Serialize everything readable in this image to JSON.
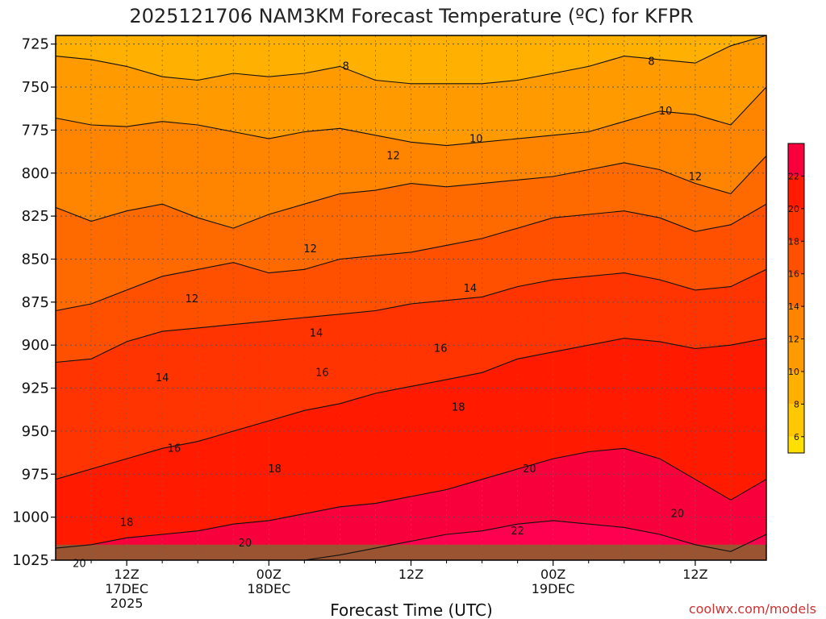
{
  "title": "2025121706 NAM3KM Forecast Temperature (ºC) for KFPR",
  "credit": "coolwx.com/models",
  "colors": {
    "bands": [
      "#FFE000",
      "#FFC800",
      "#FFB000",
      "#FF9A00",
      "#FF8400",
      "#FF6A00",
      "#FF5000",
      "#FF3400",
      "#FF1A00",
      "#F8003C",
      "#FF0050"
    ],
    "ground": "#9B5431",
    "contour": "#111111",
    "grid": "#555555",
    "credit": "#cc3333"
  },
  "chart_data": {
    "type": "heatmap",
    "title": "2025121706 NAM3KM Forecast Temperature (ºC) for KFPR",
    "xlabel": "Forecast Time (UTC)",
    "ylabel": "",
    "xlim": [
      6,
      66
    ],
    "ylim": [
      1025,
      720
    ],
    "y_scale": "pressure (inverted)",
    "grid": true,
    "legend": "colorbar right",
    "x_ticks": [
      {
        "value": 12,
        "lines": [
          "12Z",
          "17DEC",
          "2025"
        ]
      },
      {
        "value": 24,
        "lines": [
          "00Z",
          "18DEC"
        ]
      },
      {
        "value": 36,
        "lines": [
          "12Z"
        ]
      },
      {
        "value": 48,
        "lines": [
          "00Z",
          "19DEC"
        ]
      },
      {
        "value": 60,
        "lines": [
          "12Z"
        ]
      }
    ],
    "y_ticks": [
      725,
      750,
      775,
      800,
      825,
      850,
      875,
      900,
      925,
      950,
      975,
      1000,
      1025
    ],
    "y_tick_labels": [
      "725",
      "750",
      "775",
      "800",
      "825",
      "850",
      "875",
      "900",
      "925",
      "950",
      "975",
      "1000",
      "1025"
    ],
    "colorbar": {
      "ticks": [
        "6",
        "8",
        "10",
        "12",
        "14",
        "16",
        "18",
        "20",
        "22"
      ],
      "levels": [
        5,
        6,
        7,
        8,
        9,
        10,
        11,
        12,
        13,
        14,
        15,
        16,
        17,
        18,
        19,
        20,
        21,
        22,
        23,
        24
      ],
      "level_step": 2
    },
    "contour_levels": [
      8,
      10,
      12,
      14,
      16,
      18,
      20,
      22
    ],
    "contour_x": [
      6,
      9,
      12,
      15,
      18,
      21,
      24,
      27,
      30,
      33,
      36,
      39,
      42,
      45,
      48,
      51,
      54,
      57,
      60,
      63,
      66
    ],
    "contours": [
      {
        "level": 8,
        "p": [
          732,
          734,
          738,
          744,
          746,
          742,
          744,
          742,
          738,
          746,
          748,
          748,
          748,
          746,
          742,
          738,
          732,
          734,
          736,
          726,
          718
        ]
      },
      {
        "level": 10,
        "p": [
          768,
          772,
          773,
          770,
          772,
          776,
          780,
          776,
          774,
          778,
          782,
          784,
          782,
          780,
          778,
          776,
          770,
          764,
          766,
          772,
          750
        ]
      },
      {
        "level": 12,
        "p": [
          820,
          828,
          822,
          818,
          826,
          832,
          824,
          818,
          812,
          810,
          806,
          808,
          806,
          804,
          802,
          798,
          794,
          798,
          806,
          812,
          790
        ]
      },
      {
        "level": 14,
        "p": [
          880,
          876,
          868,
          860,
          856,
          852,
          858,
          856,
          850,
          848,
          846,
          842,
          838,
          832,
          826,
          824,
          822,
          826,
          834,
          830,
          818
        ]
      },
      {
        "level": 16,
        "p": [
          910,
          908,
          898,
          892,
          890,
          888,
          886,
          884,
          882,
          880,
          876,
          874,
          872,
          866,
          862,
          860,
          858,
          862,
          868,
          866,
          856
        ]
      },
      {
        "level": 18,
        "p": [
          978,
          972,
          966,
          960,
          956,
          950,
          944,
          938,
          934,
          928,
          924,
          920,
          916,
          908,
          904,
          900,
          896,
          898,
          902,
          900,
          896
        ]
      },
      {
        "level": 20,
        "p": [
          1018,
          1016,
          1012,
          1010,
          1008,
          1004,
          1002,
          998,
          994,
          992,
          988,
          984,
          978,
          972,
          966,
          962,
          960,
          966,
          978,
          990,
          978
        ]
      },
      {
        "level": 22,
        "p": [
          1030,
          1030,
          1030,
          1030,
          1030,
          1028,
          1027,
          1025,
          1022,
          1018,
          1014,
          1010,
          1008,
          1004,
          1002,
          1004,
          1006,
          1010,
          1016,
          1020,
          1010
        ]
      }
    ],
    "contour_labels": [
      {
        "text": "8",
        "x": 30.5,
        "p": 740
      },
      {
        "text": "8",
        "x": 56.3,
        "p": 737
      },
      {
        "text": "10",
        "x": 41.5,
        "p": 782
      },
      {
        "text": "10",
        "x": 57.5,
        "p": 766
      },
      {
        "text": "12",
        "x": 34.5,
        "p": 792
      },
      {
        "text": "12",
        "x": 27.5,
        "p": 846
      },
      {
        "text": "12",
        "x": 17.5,
        "p": 875
      },
      {
        "text": "12",
        "x": 60.0,
        "p": 804
      },
      {
        "text": "14",
        "x": 41.0,
        "p": 869
      },
      {
        "text": "14",
        "x": 28.0,
        "p": 895
      },
      {
        "text": "14",
        "x": 15.0,
        "p": 921
      },
      {
        "text": "16",
        "x": 28.5,
        "p": 918
      },
      {
        "text": "16",
        "x": 38.5,
        "p": 904
      },
      {
        "text": "16",
        "x": 16.0,
        "p": 962
      },
      {
        "text": "18",
        "x": 24.5,
        "p": 974
      },
      {
        "text": "18",
        "x": 40.0,
        "p": 938
      },
      {
        "text": "18",
        "x": 12.0,
        "p": 1005
      },
      {
        "text": "20",
        "x": 22.0,
        "p": 1017
      },
      {
        "text": "20",
        "x": 46.0,
        "p": 974
      },
      {
        "text": "20",
        "x": 8.0,
        "p": 1029
      },
      {
        "text": "20",
        "x": 58.5,
        "p": 1000
      },
      {
        "text": "22",
        "x": 45.0,
        "p": 1010
      }
    ],
    "ground_p": 1016
  }
}
